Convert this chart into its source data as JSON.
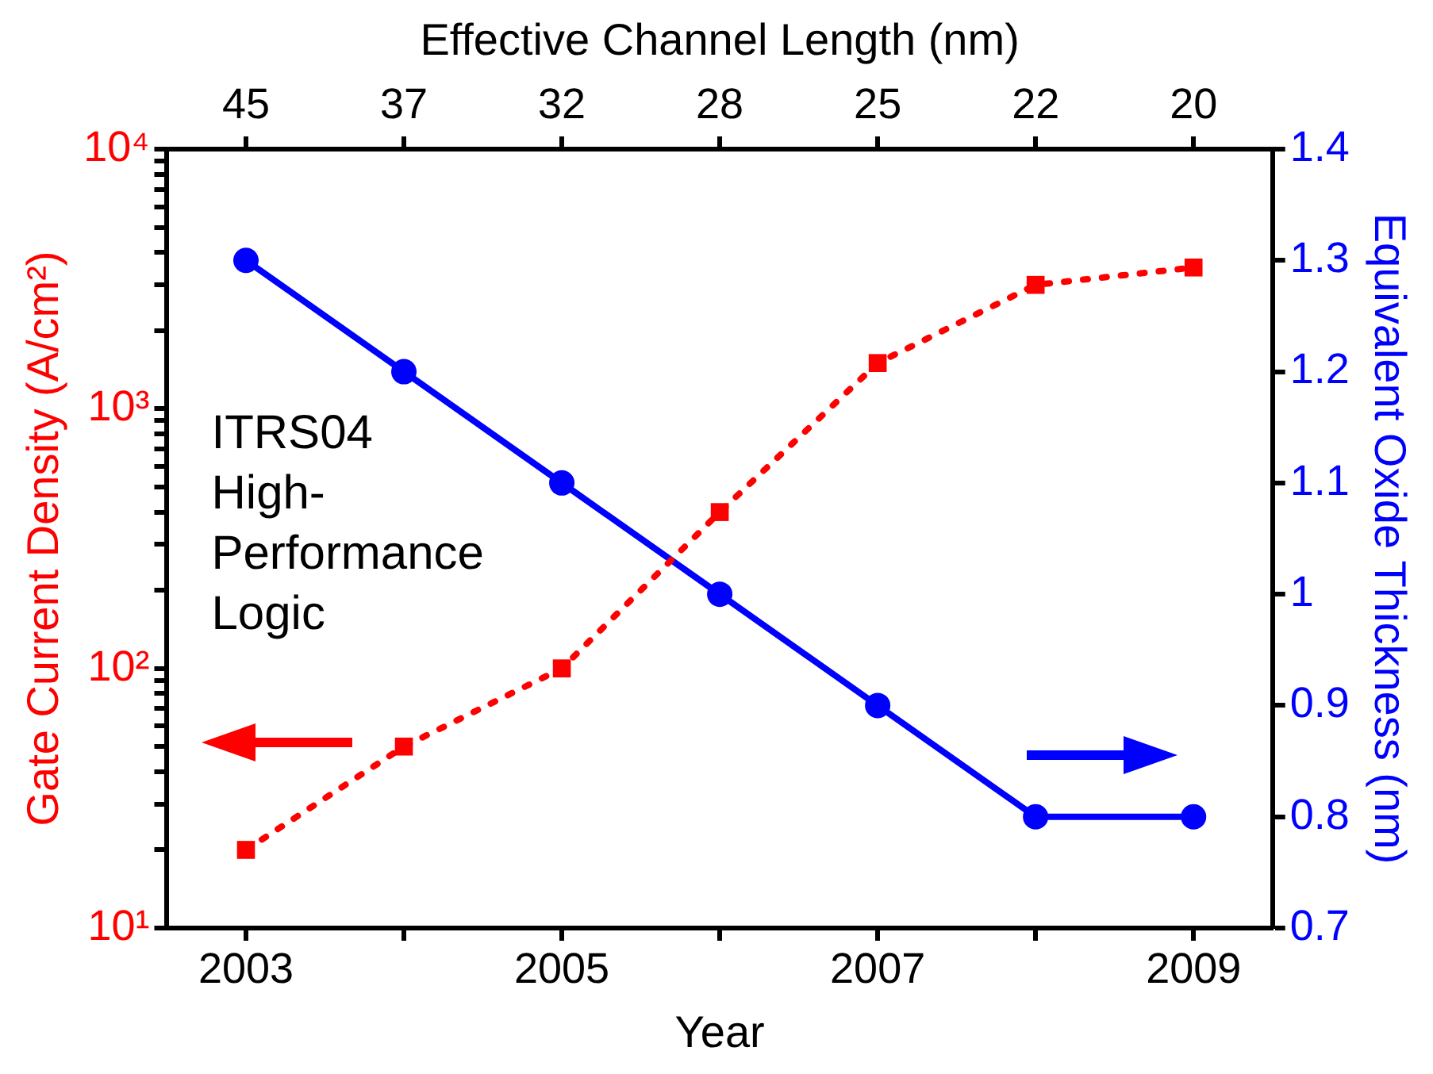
{
  "chart_data": {
    "type": "line",
    "xlabel": "Year",
    "x2label": "Effective Channel Length (nm)",
    "ylabel": "Gate Current Density (A/cm²)",
    "y2label": "Equivalent Oxide Thickness (nm)",
    "x": [
      2003,
      2004,
      2005,
      2006,
      2007,
      2008,
      2009
    ],
    "xlim": [
      2002.5,
      2009.5
    ],
    "xticks": [
      2003,
      {
        "value": 2004,
        "label": null
      },
      2005,
      {
        "value": 2006,
        "label": null
      },
      2007,
      {
        "value": 2008,
        "label": null
      },
      2009
    ],
    "log": "y",
    "ylim": [
      10,
      10000
    ],
    "yticks": [
      {
        "value": 10,
        "label": "10¹"
      },
      {
        "value": 20,
        "label": null
      },
      {
        "value": 30,
        "label": null
      },
      {
        "value": 40,
        "label": null
      },
      {
        "value": 50,
        "label": null
      },
      {
        "value": 60,
        "label": null
      },
      {
        "value": 70,
        "label": null
      },
      {
        "value": 80,
        "label": null
      },
      {
        "value": 90,
        "label": null
      },
      {
        "value": 100,
        "label": "10²"
      },
      {
        "value": 200,
        "label": null
      },
      {
        "value": 300,
        "label": null
      },
      {
        "value": 400,
        "label": null
      },
      {
        "value": 500,
        "label": null
      },
      {
        "value": 600,
        "label": null
      },
      {
        "value": 700,
        "label": null
      },
      {
        "value": 800,
        "label": null
      },
      {
        "value": 900,
        "label": null
      },
      {
        "value": 1000,
        "label": "10³"
      },
      {
        "value": 2000,
        "label": null
      },
      {
        "value": 3000,
        "label": null
      },
      {
        "value": 4000,
        "label": null
      },
      {
        "value": 5000,
        "label": null
      },
      {
        "value": 6000,
        "label": null
      },
      {
        "value": 7000,
        "label": null
      },
      {
        "value": 8000,
        "label": null
      },
      {
        "value": 9000,
        "label": null
      },
      {
        "value": 10000,
        "label": "10⁴"
      }
    ],
    "y2lim": [
      0.7,
      1.4
    ],
    "y2ticks": [
      0.7,
      0.8,
      0.9,
      1.0,
      1.1,
      1.2,
      1.3,
      1.4
    ],
    "grid": false,
    "legend": false,
    "series": [
      {
        "color": "#ff0000",
        "axis": "y",
        "marker": "square",
        "line_style": "dotted",
        "values": [
          20,
          50,
          100,
          400,
          1500,
          3000,
          3500
        ]
      },
      {
        "color": "#0000ff",
        "axis": "y2",
        "marker": "circle",
        "line_style": "solid",
        "values": [
          1.3,
          1.2,
          1.1,
          1.0,
          0.9,
          0.8,
          0.8
        ]
      }
    ],
    "annotations": [
      "ITRS04\nHigh-\nPerformance\nLogic",
      {
        "text": "45",
        "x": 2003
      },
      {
        "text": "37",
        "x": 2004
      },
      {
        "text": "32",
        "x": 2005
      },
      {
        "text": "28",
        "x": 2006
      },
      {
        "text": "25",
        "x": 2007
      },
      {
        "text": "22",
        "x": 2008
      },
      {
        "text": "20",
        "x": 2009
      }
    ]
  }
}
